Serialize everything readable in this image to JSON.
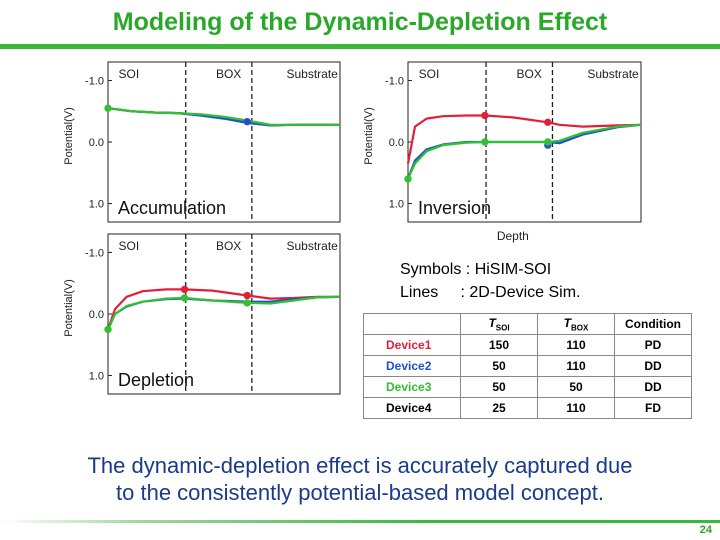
{
  "slide": {
    "title": "Modeling of the Dynamic-Depletion Effect",
    "caption_line1": "The dynamic-depletion effect is accurately captured due",
    "caption_line2": "to the consistently potential-based model concept.",
    "page_number": "24"
  },
  "colors": {
    "device1": "#e0203a",
    "device2": "#2050d0",
    "device3": "#30c030",
    "device4": "#000000",
    "title_green": "#2aa82a"
  },
  "legend": {
    "symbols": "Symbols : HiSIM-SOI",
    "lines": "Lines     : 2D-Device Sim."
  },
  "device_table": {
    "headers": [
      "",
      "T_SOI",
      "T_BOX",
      "Condition"
    ],
    "header_main": [
      "T",
      "T"
    ],
    "header_sub": [
      "SOI",
      "BOX"
    ],
    "header_condition": "Condition",
    "rows": [
      {
        "name": "Device1",
        "tsoi": "150",
        "tbox": "110",
        "condition": "PD",
        "color": "#e0203a"
      },
      {
        "name": "Device2",
        "tsoi": "50",
        "tbox": "110",
        "condition": "DD",
        "color": "#2050d0"
      },
      {
        "name": "Device3",
        "tsoi": "50",
        "tbox": "50",
        "condition": "DD",
        "color": "#30c030"
      },
      {
        "name": "Device4",
        "tsoi": "25",
        "tbox": "110",
        "condition": "FD",
        "color": "#000000"
      }
    ]
  },
  "chart_data": [
    {
      "type": "line",
      "name": "Accumulation",
      "regions": [
        "SOI",
        "BOX",
        "Substrate"
      ],
      "ylabel": "Potential(V)",
      "yticks": [
        "-1.0",
        "0.0",
        "1.0"
      ],
      "ylim": [
        -1.3,
        1.3
      ],
      "y_inverted": true,
      "xlabel": "",
      "label": "Accumulation",
      "x": [
        0,
        0.1,
        0.2,
        0.3,
        0.4,
        0.5,
        0.6,
        0.7,
        0.8,
        0.9,
        1.0
      ],
      "series": [
        {
          "name": "Device1",
          "values": [
            -0.55,
            -0.5,
            -0.48,
            -0.47,
            -0.44,
            -0.4,
            -0.33,
            -0.27,
            -0.28,
            -0.28,
            -0.28
          ]
        },
        {
          "name": "Device2",
          "values": [
            -0.55,
            -0.5,
            -0.48,
            -0.47,
            -0.43,
            -0.38,
            -0.31,
            -0.27,
            -0.28,
            -0.28,
            -0.28
          ]
        },
        {
          "name": "Device3",
          "values": [
            -0.55,
            -0.5,
            -0.48,
            -0.47,
            -0.45,
            -0.41,
            -0.35,
            -0.28,
            -0.28,
            -0.28,
            -0.28
          ]
        }
      ],
      "markers": [
        {
          "x": 0.0,
          "y": -0.55,
          "color": "#30c030"
        },
        {
          "x": 0.6,
          "y": -0.33,
          "color": "#2050d0"
        }
      ]
    },
    {
      "type": "line",
      "name": "Inversion",
      "regions": [
        "SOI",
        "BOX",
        "Substrate"
      ],
      "ylabel": "Potential(V)",
      "yticks": [
        "-1.0",
        "0.0",
        "1.0"
      ],
      "ylim": [
        -1.3,
        1.3
      ],
      "y_inverted": true,
      "xlabel": "Depth",
      "label": "Inversion",
      "x": [
        0,
        0.03,
        0.08,
        0.15,
        0.25,
        0.33,
        0.45,
        0.6,
        0.65,
        0.75,
        0.9,
        1.0
      ],
      "series": [
        {
          "name": "Device1",
          "values": [
            0.35,
            -0.25,
            -0.38,
            -0.42,
            -0.43,
            -0.43,
            -0.4,
            -0.32,
            -0.28,
            -0.25,
            -0.27,
            -0.28
          ]
        },
        {
          "name": "Device2",
          "values": [
            0.6,
            0.3,
            0.12,
            0.04,
            0.0,
            0.0,
            0.0,
            0.0,
            0.02,
            -0.12,
            -0.24,
            -0.28
          ]
        },
        {
          "name": "Device3",
          "values": [
            0.6,
            0.35,
            0.15,
            0.05,
            0.01,
            0.0,
            0.0,
            0.0,
            -0.02,
            -0.15,
            -0.25,
            -0.28
          ]
        }
      ],
      "markers": [
        {
          "x": 0.0,
          "y": 0.6,
          "color": "#30c030"
        },
        {
          "x": 0.33,
          "y": -0.43,
          "color": "#e0203a"
        },
        {
          "x": 0.33,
          "y": 0.0,
          "color": "#30c030"
        },
        {
          "x": 0.6,
          "y": -0.32,
          "color": "#e0203a"
        },
        {
          "x": 0.6,
          "y": 0.05,
          "color": "#2050d0"
        },
        {
          "x": 0.6,
          "y": 0.0,
          "color": "#30c030"
        }
      ]
    },
    {
      "type": "line",
      "name": "Depletion",
      "regions": [
        "SOI",
        "BOX",
        "Substrate"
      ],
      "ylabel": "Potential(V)",
      "yticks": [
        "-1.0",
        "0.0",
        "1.0"
      ],
      "ylim": [
        -1.3,
        1.3
      ],
      "y_inverted": true,
      "xlabel": "",
      "label": "Depletion",
      "x": [
        0,
        0.03,
        0.08,
        0.15,
        0.25,
        0.33,
        0.45,
        0.6,
        0.7,
        0.8,
        0.9,
        1.0
      ],
      "series": [
        {
          "name": "Device1",
          "values": [
            0.25,
            -0.08,
            -0.28,
            -0.37,
            -0.4,
            -0.4,
            -0.38,
            -0.3,
            -0.25,
            -0.26,
            -0.28,
            -0.28
          ]
        },
        {
          "name": "Device2",
          "values": [
            0.25,
            0.0,
            -0.12,
            -0.2,
            -0.24,
            -0.25,
            -0.22,
            -0.2,
            -0.2,
            -0.24,
            -0.27,
            -0.28
          ]
        },
        {
          "name": "Device3",
          "values": [
            0.25,
            0.0,
            -0.13,
            -0.2,
            -0.25,
            -0.26,
            -0.22,
            -0.18,
            -0.17,
            -0.22,
            -0.27,
            -0.28
          ]
        }
      ],
      "markers": [
        {
          "x": 0.0,
          "y": 0.25,
          "color": "#30c030"
        },
        {
          "x": 0.33,
          "y": -0.4,
          "color": "#e0203a"
        },
        {
          "x": 0.33,
          "y": -0.26,
          "color": "#30c030"
        },
        {
          "x": 0.6,
          "y": -0.3,
          "color": "#e0203a"
        },
        {
          "x": 0.6,
          "y": -0.18,
          "color": "#30c030"
        }
      ]
    }
  ]
}
